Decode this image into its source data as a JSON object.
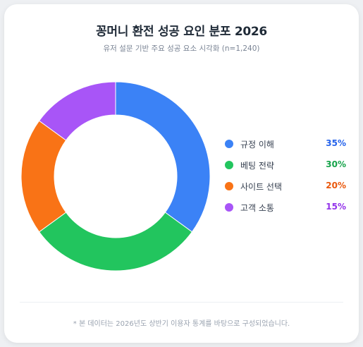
{
  "header": {
    "title": "꽁머니 환전 성공 요인 분포 2026",
    "subtitle": "유저 설문 기반 주요 성공 요소 시각화 (n=1,240)"
  },
  "footer": {
    "note": "* 본 데이터는 2026년도 상반기 이용자 통계를 바탕으로 구성되었습니다."
  },
  "chart_data": {
    "type": "pie",
    "variant": "donut",
    "title": "꽁머니 환전 성공 요인 분포 2026",
    "subtitle": "유저 설문 기반 주요 성공 요소 시각화 (n=1,240)",
    "legend_position": "right",
    "categories": [
      "규정 이해",
      "베팅 전략",
      "사이트 선택",
      "고객 소통"
    ],
    "values": [
      35,
      30,
      20,
      15
    ],
    "value_labels": [
      "35%",
      "30%",
      "20%",
      "15%"
    ],
    "colors": [
      "#3b82f6",
      "#22c55e",
      "#f97316",
      "#a855f7"
    ],
    "value_text_colors": [
      "#2563eb",
      "#16a34a",
      "#ea580c",
      "#9333ea"
    ]
  }
}
